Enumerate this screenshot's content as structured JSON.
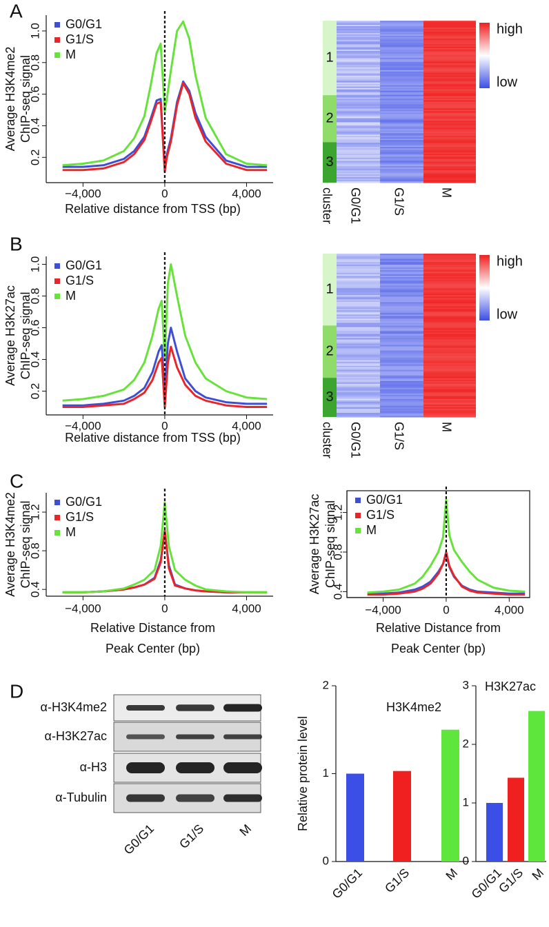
{
  "chart_data": [
    {
      "type": "line",
      "panel": "A",
      "ylabel": [
        "Average H3K4me2",
        "ChIP-seq signal"
      ],
      "xlabel": "Relative distance from TSS (bp)",
      "x": [
        -5000,
        -4000,
        -3000,
        -2000,
        -1500,
        -1000,
        -700,
        -400,
        -200,
        0,
        100,
        300,
        600,
        900,
        1200,
        1500,
        2000,
        3000,
        4000,
        5000
      ],
      "series": [
        {
          "name": "G0/G1",
          "color": "#3e4fd6",
          "values": [
            0.14,
            0.14,
            0.15,
            0.19,
            0.24,
            0.33,
            0.44,
            0.56,
            0.57,
            0.13,
            0.22,
            0.32,
            0.55,
            0.68,
            0.62,
            0.48,
            0.33,
            0.18,
            0.14,
            0.14
          ]
        },
        {
          "name": "G1/S",
          "color": "#e8262a",
          "values": [
            0.12,
            0.12,
            0.13,
            0.17,
            0.22,
            0.31,
            0.42,
            0.54,
            0.55,
            0.11,
            0.2,
            0.3,
            0.53,
            0.67,
            0.6,
            0.45,
            0.3,
            0.16,
            0.12,
            0.12
          ]
        },
        {
          "name": "M",
          "color": "#66e23b",
          "values": [
            0.15,
            0.16,
            0.18,
            0.24,
            0.32,
            0.46,
            0.65,
            0.86,
            0.92,
            0.49,
            0.57,
            0.75,
            1.0,
            1.06,
            0.95,
            0.72,
            0.45,
            0.22,
            0.16,
            0.15
          ]
        }
      ],
      "xlim": [
        -5800,
        5300
      ],
      "ylim": [
        0.04,
        1.1
      ],
      "xticks": [
        {
          "value": -4000,
          "label": "−4,000"
        },
        0,
        {
          "value": 4000,
          "label": "4,000"
        }
      ],
      "yticks": [
        0.2,
        0.4,
        0.6,
        0.8,
        {
          "value": 1,
          "label": "1.0"
        }
      ],
      "vline": 0,
      "legend": "upper left"
    },
    {
      "type": "heatmap",
      "clusters": [
        "1",
        "2",
        "3"
      ],
      "cluster_label": "cluster",
      "columns": [
        "G0/G1",
        "G1/S",
        "M"
      ],
      "legend_high": "high",
      "legend_low": "low",
      "colormap": {
        "high": "#f01e1e",
        "mid": "#ffffff",
        "low": "#3c4ee6"
      },
      "cluster_colors": [
        "#d6f5c9",
        "#8fdc6b",
        "#3ca52f"
      ]
    },
    {
      "type": "line",
      "panel": "B",
      "ylabel": [
        "Average H3K27ac",
        "ChIP-seq signal"
      ],
      "xlabel": "Relative distance from TSS (bp)",
      "x": [
        -5000,
        -4000,
        -3000,
        -2000,
        -1500,
        -1000,
        -600,
        -300,
        -150,
        0,
        150,
        300,
        600,
        1000,
        1500,
        2000,
        3000,
        4000,
        5000
      ],
      "series": [
        {
          "name": "G0/G1",
          "color": "#3e4fd6",
          "values": [
            0.11,
            0.11,
            0.12,
            0.14,
            0.17,
            0.22,
            0.32,
            0.45,
            0.49,
            0.2,
            0.5,
            0.6,
            0.45,
            0.28,
            0.2,
            0.16,
            0.13,
            0.12,
            0.12
          ]
        },
        {
          "name": "G1/S",
          "color": "#e8262a",
          "values": [
            0.1,
            0.1,
            0.11,
            0.12,
            0.15,
            0.19,
            0.27,
            0.38,
            0.41,
            0.1,
            0.38,
            0.48,
            0.35,
            0.24,
            0.17,
            0.14,
            0.11,
            0.1,
            0.1
          ]
        },
        {
          "name": "M",
          "color": "#66e23b",
          "values": [
            0.14,
            0.15,
            0.17,
            0.21,
            0.27,
            0.38,
            0.55,
            0.72,
            0.77,
            0.4,
            0.88,
            1.0,
            0.8,
            0.55,
            0.38,
            0.28,
            0.2,
            0.16,
            0.15
          ]
        }
      ],
      "xlim": [
        -5800,
        5300
      ],
      "ylim": [
        0.05,
        1.05
      ],
      "xticks": [
        {
          "value": -4000,
          "label": "−4,000"
        },
        0,
        {
          "value": 4000,
          "label": "4,000"
        }
      ],
      "yticks": [
        0.2,
        0.4,
        0.6,
        0.8,
        {
          "value": 1,
          "label": "1.0"
        }
      ],
      "vline": 0,
      "legend": "upper left"
    },
    {
      "type": "heatmap",
      "clusters": [
        "1",
        "2",
        "3"
      ],
      "cluster_label": "cluster",
      "columns": [
        "G0/G1",
        "G1/S",
        "M"
      ],
      "legend_high": "high",
      "legend_low": "low",
      "colormap": {
        "high": "#f01e1e",
        "mid": "#ffffff",
        "low": "#3c4ee6"
      },
      "cluster_colors": [
        "#d6f5c9",
        "#8fdc6b",
        "#3ca52f"
      ]
    },
    {
      "type": "line",
      "panel": "C",
      "ylabel": [
        "Average H3K4me2",
        "ChIP-seq signal"
      ],
      "xlabel": [
        "Relative Distance from",
        "Peak Center (bp)"
      ],
      "x": [
        -5000,
        -4000,
        -3000,
        -2000,
        -1500,
        -1000,
        -500,
        -200,
        0,
        200,
        500,
        1000,
        1500,
        2000,
        3000,
        4000,
        5000
      ],
      "series": [
        {
          "name": "G0/G1",
          "color": "#3e4fd6",
          "values": [
            0.37,
            0.37,
            0.38,
            0.4,
            0.42,
            0.45,
            0.52,
            0.7,
            1.0,
            0.65,
            0.45,
            0.41,
            0.39,
            0.38,
            0.37,
            0.37,
            0.37
          ]
        },
        {
          "name": "G1/S",
          "color": "#e8262a",
          "values": [
            0.37,
            0.37,
            0.38,
            0.4,
            0.42,
            0.45,
            0.51,
            0.68,
            1.01,
            0.62,
            0.44,
            0.41,
            0.39,
            0.38,
            0.37,
            0.37,
            0.37
          ]
        },
        {
          "name": "M",
          "color": "#66e23b",
          "values": [
            0.37,
            0.37,
            0.38,
            0.41,
            0.45,
            0.5,
            0.6,
            0.85,
            1.3,
            0.85,
            0.6,
            0.5,
            0.44,
            0.4,
            0.38,
            0.37,
            0.37
          ]
        }
      ],
      "xlim": [
        -5800,
        5300
      ],
      "ylim": [
        0.33,
        1.4
      ],
      "xticks": [
        {
          "value": -4000,
          "label": "−4,000"
        },
        0,
        {
          "value": 4000,
          "label": "4,000"
        }
      ],
      "yticks": [
        0.4,
        0.8,
        1.2
      ],
      "vline": 0,
      "legend": "upper left"
    },
    {
      "type": "line",
      "ylabel": [
        "Average H3K27ac",
        "ChIP-seq signal"
      ],
      "xlabel": [
        "Relative Distance from",
        "Peak Center (bp)"
      ],
      "x": [
        -5000,
        -4000,
        -3000,
        -2000,
        -1500,
        -1000,
        -500,
        -200,
        0,
        200,
        500,
        1000,
        1500,
        2000,
        3000,
        4000,
        5000
      ],
      "series": [
        {
          "name": "G0/G1",
          "color": "#3e4fd6",
          "values": [
            0.38,
            0.38,
            0.39,
            0.42,
            0.45,
            0.5,
            0.6,
            0.68,
            0.78,
            0.65,
            0.55,
            0.46,
            0.42,
            0.4,
            0.39,
            0.38,
            0.38
          ]
        },
        {
          "name": "G1/S",
          "color": "#e8262a",
          "values": [
            0.37,
            0.37,
            0.38,
            0.4,
            0.43,
            0.48,
            0.58,
            0.68,
            0.8,
            0.66,
            0.56,
            0.45,
            0.41,
            0.39,
            0.38,
            0.37,
            0.37
          ]
        },
        {
          "name": "M",
          "color": "#66e23b",
          "values": [
            0.39,
            0.4,
            0.42,
            0.48,
            0.55,
            0.66,
            0.8,
            0.95,
            1.33,
            0.97,
            0.82,
            0.7,
            0.6,
            0.52,
            0.44,
            0.41,
            0.4
          ]
        }
      ],
      "xlim": [
        -6300,
        5300
      ],
      "ylim": [
        0.34,
        1.42
      ],
      "xticks": [
        {
          "value": -4000,
          "label": "−4,000"
        },
        0,
        {
          "value": 4000,
          "label": "4,000"
        }
      ],
      "yticks": [
        0.4,
        0.8,
        1.2
      ],
      "vline": 0,
      "legend": "upper left",
      "frame": true
    },
    {
      "type": "blot",
      "panel": "D",
      "rows": [
        "α-H3K4me2",
        "α-H3K27ac",
        "α-H3",
        "α-Tubulin"
      ],
      "lanes": [
        "G0/G1",
        "G1/S",
        "M"
      ]
    },
    {
      "type": "bar",
      "title": "H3K4me2",
      "ylabel": "Relative protein level",
      "categories": [
        "G0/G1",
        "G1/S",
        "M"
      ],
      "values": [
        1,
        1.03,
        1.5
      ],
      "colors": [
        "#3b4fe6",
        "#f02020",
        "#5ee63c"
      ],
      "ylim": [
        0,
        2
      ],
      "yticks": [
        0,
        1,
        2
      ]
    },
    {
      "type": "bar",
      "title": "H3K27ac",
      "categories": [
        "G0/G1",
        "G1/S",
        "M"
      ],
      "values": [
        1,
        1.43,
        2.57
      ],
      "colors": [
        "#3b4fe6",
        "#f02020",
        "#5ee63c"
      ],
      "ylim": [
        0,
        3
      ],
      "yticks": [
        0,
        1,
        2,
        3
      ]
    }
  ]
}
